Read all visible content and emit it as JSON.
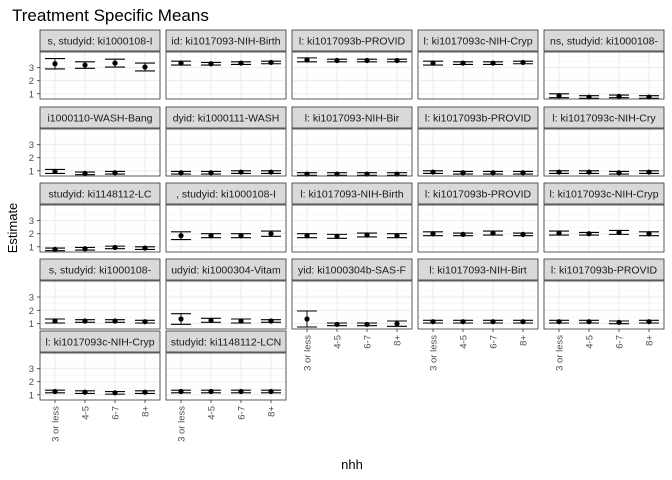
{
  "chart_data": {
    "type": "scatter",
    "title": "Treatment Specific Means",
    "xlabel": "nhh",
    "ylabel": "Estimate",
    "categories": [
      "3 or less",
      "4-5",
      "6-7",
      "8+"
    ],
    "y_ticks": [
      1,
      2,
      3
    ],
    "ylim": [
      0.6,
      4.2
    ],
    "grid": true,
    "layout": "facet wrap, 5 columns",
    "panels": [
      {
        "strip": "s, studyid: ki1000108-I",
        "values": [
          3.3,
          3.2,
          3.35,
          3.05
        ],
        "ci": [
          [
            2.9,
            3.7
          ],
          [
            2.95,
            3.45
          ],
          [
            3.05,
            3.65
          ],
          [
            2.75,
            3.35
          ]
        ]
      },
      {
        "strip": "id: ki1017093-NIH-Birth",
        "values": [
          3.35,
          3.3,
          3.35,
          3.4
        ],
        "ci": [
          [
            3.2,
            3.5
          ],
          [
            3.2,
            3.4
          ],
          [
            3.25,
            3.45
          ],
          [
            3.3,
            3.5
          ]
        ]
      },
      {
        "strip": "l: ki1017093b-PROVID",
        "values": [
          3.6,
          3.55,
          3.55,
          3.55
        ],
        "ci": [
          [
            3.45,
            3.75
          ],
          [
            3.45,
            3.65
          ],
          [
            3.45,
            3.65
          ],
          [
            3.45,
            3.65
          ]
        ]
      },
      {
        "strip": "l: ki1017093c-NIH-Cryp",
        "values": [
          3.35,
          3.35,
          3.35,
          3.4
        ],
        "ci": [
          [
            3.2,
            3.5
          ],
          [
            3.25,
            3.45
          ],
          [
            3.25,
            3.45
          ],
          [
            3.3,
            3.5
          ]
        ]
      },
      {
        "strip": "ns, studyid: ki1000108-",
        "values": [
          0.85,
          0.75,
          0.8,
          0.75
        ],
        "ci": [
          [
            0.7,
            1.0
          ],
          [
            0.65,
            0.85
          ],
          [
            0.7,
            0.9
          ],
          [
            0.65,
            0.85
          ]
        ]
      },
      {
        "strip": "i1000110-WASH-Bang",
        "values": [
          0.95,
          0.8,
          0.85,
          null
        ],
        "ci": [
          [
            0.8,
            1.1
          ],
          [
            0.7,
            0.9
          ],
          [
            0.75,
            0.95
          ],
          null
        ]
      },
      {
        "strip": "dyid: ki1000111-WASH",
        "values": [
          0.85,
          0.85,
          0.9,
          0.9
        ],
        "ci": [
          [
            0.75,
            0.95
          ],
          [
            0.75,
            0.95
          ],
          [
            0.8,
            1.0
          ],
          [
            0.8,
            1.0
          ]
        ]
      },
      {
        "strip": "l: ki1017093-NIH-Bir",
        "values": [
          0.75,
          0.75,
          0.75,
          0.75
        ],
        "ci": [
          [
            0.65,
            0.85
          ],
          [
            0.65,
            0.85
          ],
          [
            0.65,
            0.85
          ],
          [
            0.65,
            0.85
          ]
        ]
      },
      {
        "strip": "l: ki1017093b-PROVID",
        "values": [
          0.9,
          0.85,
          0.85,
          0.85
        ],
        "ci": [
          [
            0.8,
            1.0
          ],
          [
            0.75,
            0.95
          ],
          [
            0.75,
            0.95
          ],
          [
            0.75,
            0.95
          ]
        ]
      },
      {
        "strip": "l: ki1017093c-NIH-Cry",
        "values": [
          0.9,
          0.9,
          0.85,
          0.9
        ],
        "ci": [
          [
            0.8,
            1.0
          ],
          [
            0.8,
            1.0
          ],
          [
            0.75,
            0.95
          ],
          [
            0.8,
            1.0
          ]
        ]
      },
      {
        "strip": "studyid: ki1148112-LC",
        "values": [
          0.8,
          0.85,
          0.95,
          0.9
        ],
        "ci": [
          [
            0.7,
            0.9
          ],
          [
            0.75,
            0.95
          ],
          [
            0.85,
            1.05
          ],
          [
            0.8,
            1.0
          ]
        ]
      },
      {
        "strip": ", studyid: ki1000108-I",
        "values": [
          1.85,
          1.85,
          1.85,
          2.0
        ],
        "ci": [
          [
            1.55,
            2.15
          ],
          [
            1.7,
            2.0
          ],
          [
            1.7,
            2.0
          ],
          [
            1.8,
            2.2
          ]
        ]
      },
      {
        "strip": "l: ki1017093-NIH-Birth",
        "values": [
          1.85,
          1.8,
          1.9,
          1.85
        ],
        "ci": [
          [
            1.7,
            2.0
          ],
          [
            1.65,
            1.95
          ],
          [
            1.75,
            2.05
          ],
          [
            1.7,
            2.0
          ]
        ]
      },
      {
        "strip": "l: ki1017093b-PROVID",
        "values": [
          2.0,
          1.95,
          2.05,
          1.95
        ],
        "ci": [
          [
            1.85,
            2.15
          ],
          [
            1.85,
            2.05
          ],
          [
            1.9,
            2.2
          ],
          [
            1.85,
            2.05
          ]
        ]
      },
      {
        "strip": "l: ki1017093c-NIH-Cryp",
        "values": [
          2.05,
          2.0,
          2.1,
          2.0
        ],
        "ci": [
          [
            1.9,
            2.2
          ],
          [
            1.9,
            2.1
          ],
          [
            1.95,
            2.25
          ],
          [
            1.85,
            2.15
          ]
        ]
      },
      {
        "strip": "s, studyid: ki1000108-",
        "values": [
          1.2,
          1.2,
          1.2,
          1.15
        ],
        "ci": [
          [
            1.05,
            1.35
          ],
          [
            1.1,
            1.3
          ],
          [
            1.1,
            1.3
          ],
          [
            1.05,
            1.25
          ]
        ]
      },
      {
        "strip": "udyid: ki1000304-Vitam",
        "values": [
          1.35,
          1.25,
          1.2,
          1.2
        ],
        "ci": [
          [
            0.95,
            1.75
          ],
          [
            1.1,
            1.4
          ],
          [
            1.05,
            1.35
          ],
          [
            1.1,
            1.3
          ]
        ]
      },
      {
        "strip": "yid: ki1000304b-SAS-F",
        "values": [
          1.35,
          0.95,
          0.95,
          1.0
        ],
        "ci": [
          [
            0.75,
            1.95
          ],
          [
            0.85,
            1.05
          ],
          [
            0.85,
            1.05
          ],
          [
            0.8,
            1.2
          ]
        ]
      },
      {
        "strip": "l: ki1017093-NIH-Birt",
        "values": [
          1.15,
          1.15,
          1.15,
          1.15
        ],
        "ci": [
          [
            1.05,
            1.25
          ],
          [
            1.05,
            1.25
          ],
          [
            1.05,
            1.25
          ],
          [
            1.05,
            1.25
          ]
        ]
      },
      {
        "strip": "l: ki1017093b-PROVID",
        "values": [
          1.15,
          1.15,
          1.1,
          1.15
        ],
        "ci": [
          [
            1.05,
            1.25
          ],
          [
            1.05,
            1.25
          ],
          [
            1.0,
            1.2
          ],
          [
            1.05,
            1.25
          ]
        ]
      },
      {
        "strip": "l: ki1017093c-NIH-Cryp",
        "values": [
          1.25,
          1.2,
          1.15,
          1.2
        ],
        "ci": [
          [
            1.15,
            1.35
          ],
          [
            1.1,
            1.3
          ],
          [
            1.05,
            1.25
          ],
          [
            1.1,
            1.3
          ]
        ]
      },
      {
        "strip": "studyid: ki1148112-LCN",
        "values": [
          1.25,
          1.25,
          1.25,
          1.25
        ],
        "ci": [
          [
            1.15,
            1.35
          ],
          [
            1.15,
            1.35
          ],
          [
            1.15,
            1.35
          ],
          [
            1.15,
            1.35
          ]
        ]
      }
    ]
  },
  "colors": {
    "panel_border": "#333333",
    "strip_fill": "#d9d9d9",
    "grid_major": "#ebebeb",
    "grid_minor": "#f5f5f5",
    "mark": "#000000"
  }
}
